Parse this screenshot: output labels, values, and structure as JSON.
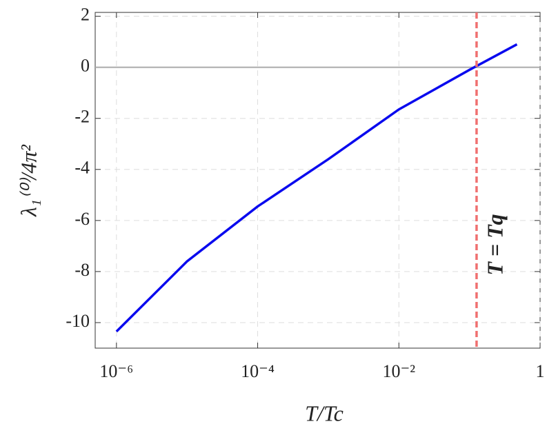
{
  "chart_data": {
    "type": "line",
    "x_label": "T/Tc",
    "y_label": "λ₁⁽⁰⁾/4π²",
    "x_log": true,
    "grid": true,
    "x": [
      1e-06,
      1e-05,
      0.0001,
      0.001,
      0.01,
      0.1,
      0.47
    ],
    "series": [
      {
        "color": "#0a0aee",
        "values": [
          -10.35,
          -7.6,
          -5.45,
          -3.6,
          -1.65,
          -0.1,
          0.9
        ]
      }
    ],
    "xlim": [
      5e-07,
      1
    ],
    "ylim": [
      -11,
      2.15
    ],
    "xticks": [
      {
        "value": 1e-06,
        "label": "10⁻⁶"
      },
      {
        "value": 0.0001,
        "label": "10⁻⁴"
      },
      {
        "value": 0.01,
        "label": "10⁻²"
      },
      1
    ],
    "yticks": [
      2,
      0,
      -2,
      -4,
      -6,
      -8,
      -10
    ],
    "hline": {
      "y": 0,
      "color": "#aaaaaa"
    },
    "vline": {
      "x": 0.126,
      "color": "#f07070",
      "label": "T = Tq"
    }
  }
}
